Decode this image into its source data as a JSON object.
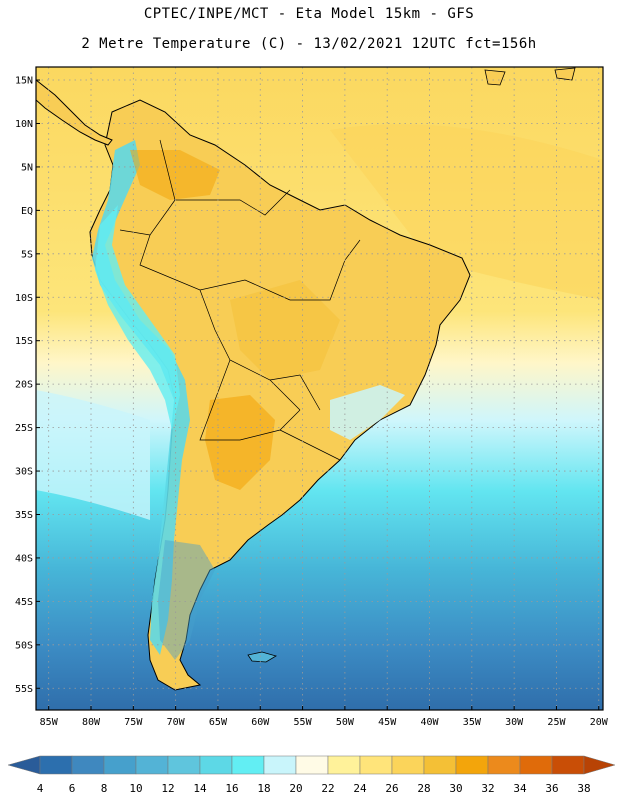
{
  "header": {
    "line1": "CPTEC/INPE/MCT  -   Eta Model 15km  -  GFS",
    "line2": "2 Metre Temperature (C) - 13/02/2021 12UTC fct=156h"
  },
  "map": {
    "lat_labels": [
      "15N",
      "10N",
      "5N",
      "EQ",
      "5S",
      "10S",
      "15S",
      "20S",
      "25S",
      "30S",
      "35S",
      "40S",
      "45S",
      "50S",
      "55S"
    ],
    "lon_labels": [
      "85W",
      "80W",
      "75W",
      "70W",
      "65W",
      "60W",
      "55W",
      "50W",
      "45W",
      "40W",
      "35W",
      "30W",
      "25W",
      "20W"
    ],
    "lat_range": [
      16.5,
      -57.5
    ],
    "lon_range": [
      -86.5,
      -19.5
    ],
    "grid": true
  },
  "colorbar": {
    "values": [
      "4",
      "6",
      "8",
      "10",
      "12",
      "14",
      "16",
      "18",
      "20",
      "22",
      "24",
      "26",
      "28",
      "30",
      "32",
      "34",
      "36",
      "38"
    ],
    "colors": [
      "#2c6fae",
      "#3f88bf",
      "#46a0cc",
      "#53b3d6",
      "#5fc5dd",
      "#5dd8e6",
      "#62eef3",
      "#c9f5fb",
      "#fffbe6",
      "#fff29a",
      "#ffe47a",
      "#fbd45a",
      "#f4c036",
      "#f3a50b",
      "#ec8a1c",
      "#e06b0a",
      "#c94e06"
    ],
    "left_end_color": "#2a5c99",
    "right_end_color": "#b84305"
  }
}
